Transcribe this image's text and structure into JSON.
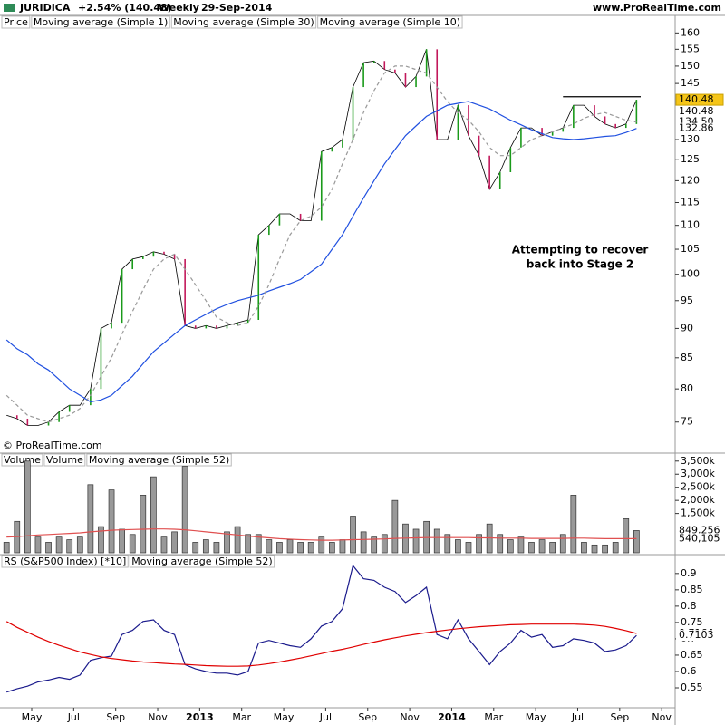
{
  "header": {
    "symbol": "JURIDICA",
    "change": "+2.54% (140.48)",
    "period": "Weekly",
    "date": "29-Sep-2014",
    "site": "www.ProRealTime.com",
    "copyright": "© ProRealTime.com"
  },
  "chart_data": {
    "type": "stock",
    "x": [
      2.8,
      3.3,
      3.8,
      4.3,
      4.8,
      5.3,
      5.8,
      6.3,
      6.8,
      7.3,
      7.8,
      8.3,
      8.8,
      9.3,
      9.8,
      10.3,
      10.8,
      11.3,
      11.8,
      12.3,
      12.8,
      13.3,
      13.8,
      14.3,
      14.8,
      15.3,
      15.8,
      16.3,
      16.8,
      17.3,
      17.8,
      18.3,
      18.8,
      19.3,
      19.8,
      20.3,
      20.8,
      21.3,
      21.8,
      22.3,
      22.8,
      23.3,
      23.8,
      24.3,
      24.8,
      25.3,
      25.8,
      26.3,
      26.8,
      27.3,
      27.8,
      28.3,
      28.8,
      29.3,
      29.8,
      30.3,
      30.8,
      31.3,
      31.8,
      32.3,
      32.8
    ],
    "xlim": [
      2.49,
      34.64
    ],
    "xticks": [
      {
        "value": 4,
        "label": "May"
      },
      {
        "value": 6,
        "label": "Jul"
      },
      {
        "value": 8,
        "label": "Sep"
      },
      {
        "value": 10,
        "label": "Nov"
      },
      {
        "value": 12,
        "label": "2013"
      },
      {
        "value": 14,
        "label": "Mar"
      },
      {
        "value": 16,
        "label": "May"
      },
      {
        "value": 18,
        "label": "Jul"
      },
      {
        "value": 20,
        "label": "Sep"
      },
      {
        "value": 22,
        "label": "Nov"
      },
      {
        "value": 24,
        "label": "2014"
      },
      {
        "value": 26,
        "label": "Mar"
      },
      {
        "value": 28,
        "label": "May"
      },
      {
        "value": 30,
        "label": "Jul"
      },
      {
        "value": 32,
        "label": "Sep"
      },
      {
        "value": 34,
        "label": "Nov"
      }
    ],
    "panels": [
      {
        "label": "Price",
        "log": true,
        "ylim": [
          70.6,
          161.8
        ],
        "yticks": [
          75,
          80,
          85,
          90,
          95,
          100,
          105,
          110,
          115,
          120,
          125,
          130,
          145,
          150,
          155,
          160
        ],
        "series": [
          {
            "name": "Moving average (Simple 1)",
            "style": "close-bars",
            "color": "#000080",
            "values": [
              76,
              75.5,
              74.5,
              74.5,
              75,
              76.5,
              77.5,
              77.5,
              80,
              90,
              91,
              101,
              103,
              103.5,
              104.5,
              104,
              103,
              90.5,
              90,
              90.5,
              90,
              90.5,
              91,
              91.5,
              108,
              110,
              112.5,
              112.5,
              111,
              111,
              127,
              128,
              130,
              144,
              151,
              151.5,
              149,
              148,
              144,
              147,
              155,
              130,
              130,
              139,
              131,
              126,
              118,
              122,
              128,
              133,
              133,
              131,
              132,
              133,
              139,
              139,
              136,
              134,
              133,
              134,
              140.48
            ]
          },
          {
            "name": "Moving average (Simple 30)",
            "style": "line",
            "color": "#2050e0",
            "values": [
              88,
              86.5,
              85.5,
              84,
              83,
              81.5,
              80,
              79,
              78,
              78.3,
              79,
              80.5,
              82,
              84,
              86,
              87.5,
              89,
              90.5,
              91.5,
              92.5,
              93.5,
              94.3,
              95,
              95.5,
              96,
              96.8,
              97.5,
              98.2,
              99,
              100.5,
              102,
              105,
              108,
              112,
              116,
              120,
              124,
              127.5,
              131,
              133.5,
              136,
              137.5,
              139,
              139.5,
              140,
              139,
              138,
              136.5,
              135,
              133.8,
              132.5,
              131.5,
              130.5,
              130.2,
              130,
              130.2,
              130.5,
              130.8,
              131,
              131.8,
              132.86
            ]
          },
          {
            "name": "Moving average (Simple 10)",
            "style": "dashed",
            "color": "#999999",
            "values": [
              79,
              77.5,
              76,
              75.5,
              75,
              75.5,
              76,
              77,
              79,
              82,
              85,
              89,
              93,
              97,
              101,
              103,
              104,
              101,
              98,
              95,
              92,
              91,
              90.5,
              91,
              94,
              98,
              103,
              108,
              111,
              112,
              114,
              118,
              124,
              130,
              137,
              143,
              148,
              150,
              150,
              149,
              148,
              144,
              140,
              137,
              135,
              132,
              128,
              126,
              126,
              128,
              130,
              131,
              132,
              133,
              134,
              135.5,
              136.5,
              137,
              136,
              135,
              134.5
            ]
          }
        ],
        "markers": [
          {
            "value": 140.48,
            "label": "140.48",
            "color": "#000000",
            "fill": "#f5c518"
          },
          {
            "value": 140.48,
            "label": "140.48",
            "color": "#000080",
            "fill": "#ffffff"
          },
          {
            "value": 134.5,
            "label": "134.50",
            "color": "#888888",
            "fill": "#ffffff"
          },
          {
            "value": 132.86,
            "label": "132.86",
            "color": "#2050e0",
            "fill": "#ffffff"
          }
        ],
        "lines": [
          {
            "value": 141.3,
            "x": [
              29.3,
              33.0
            ],
            "color": "#000000"
          }
        ],
        "annotation": [
          "Attempting to recover",
          "back into Stage 2"
        ]
      },
      {
        "label": "Volume",
        "log": false,
        "ylim": [
          0,
          3700000
        ],
        "yticks": [
          {
            "value": 1500000,
            "label": "1,500k"
          },
          {
            "value": 2000000,
            "label": "2,000k"
          },
          {
            "value": 2500000,
            "label": "2,500k"
          },
          {
            "value": 3000000,
            "label": "3,000k"
          },
          {
            "value": 3500000,
            "label": "3,500k"
          }
        ],
        "series": [
          {
            "name": "Volume",
            "style": "columns",
            "color": "#999999",
            "values": [
              400000,
              1200000,
              3500000,
              600000,
              400000,
              600000,
              500000,
              600000,
              2600000,
              1000000,
              2400000,
              900000,
              700000,
              2200000,
              2900000,
              600000,
              800000,
              3300000,
              400000,
              500000,
              400000,
              800000,
              1000000,
              700000,
              700000,
              500000,
              400000,
              500000,
              400000,
              400000,
              600000,
              400000,
              500000,
              1400000,
              800000,
              600000,
              700000,
              2000000,
              1100000,
              900000,
              1200000,
              900000,
              700000,
              500000,
              400000,
              700000,
              1100000,
              700000,
              500000,
              600000,
              400000,
              500000,
              400000,
              700000,
              2200000,
              400000,
              300000,
              300000,
              400000,
              1300000,
              849256
            ]
          },
          {
            "name": "Moving average (Simple 52)",
            "style": "line",
            "color": "#e05050",
            "values": [
              600000,
              620000,
              650000,
              680000,
              700000,
              720000,
              740000,
              760000,
              800000,
              830000,
              860000,
              880000,
              890000,
              900000,
              910000,
              910000,
              900000,
              880000,
              840000,
              800000,
              760000,
              720000,
              680000,
              640000,
              600000,
              570000,
              540000,
              520000,
              500000,
              490000,
              480000,
              480000,
              490000,
              500000,
              510000,
              520000,
              530000,
              550000,
              560000,
              570000,
              580000,
              580000,
              580000,
              580000,
              580000,
              570000,
              570000,
              560000,
              560000,
              560000,
              550000,
              550000,
              550000,
              550000,
              560000,
              560000,
              550000,
              540000,
              540000,
              540000,
              540105
            ]
          }
        ],
        "markers": [
          {
            "value": 849256,
            "label": "849,256",
            "color": "#888888",
            "fill": "#ffffff"
          },
          {
            "value": 540105,
            "label": "540,105",
            "color": "#e05050",
            "fill": "#ffffff"
          }
        ]
      },
      {
        "label": "RS (S&P500 Index) [*10]",
        "log": false,
        "ylim": [
          0.489,
          0.955
        ],
        "yticks": [
          0.55,
          0.6,
          0.65,
          0.7,
          0.75,
          0.8,
          0.85,
          0.9
        ],
        "series": [
          {
            "name": null,
            "style": "line",
            "color": "#1a1a8c",
            "values": [
              0.537,
              0.547,
              0.555,
              0.568,
              0.574,
              0.582,
              0.576,
              0.589,
              0.634,
              0.642,
              0.647,
              0.713,
              0.726,
              0.753,
              0.758,
              0.726,
              0.713,
              0.621,
              0.608,
              0.6,
              0.595,
              0.595,
              0.589,
              0.6,
              0.687,
              0.695,
              0.687,
              0.679,
              0.674,
              0.7,
              0.739,
              0.753,
              0.792,
              0.924,
              0.884,
              0.879,
              0.858,
              0.845,
              0.811,
              0.832,
              0.858,
              0.713,
              0.7,
              0.758,
              0.7,
              0.661,
              0.621,
              0.661,
              0.687,
              0.726,
              0.705,
              0.713,
              0.674,
              0.679,
              0.7,
              0.695,
              0.687,
              0.661,
              0.666,
              0.679,
              0.7103
            ]
          },
          {
            "name": "Moving average (Simple 52)",
            "style": "line",
            "color": "#e00000",
            "values": [
              0.753,
              0.735,
              0.72,
              0.705,
              0.692,
              0.68,
              0.67,
              0.66,
              0.652,
              0.645,
              0.64,
              0.636,
              0.632,
              0.629,
              0.627,
              0.625,
              0.623,
              0.622,
              0.62,
              0.618,
              0.617,
              0.616,
              0.616,
              0.617,
              0.62,
              0.624,
              0.629,
              0.635,
              0.641,
              0.648,
              0.655,
              0.662,
              0.668,
              0.675,
              0.683,
              0.69,
              0.697,
              0.703,
              0.709,
              0.714,
              0.719,
              0.723,
              0.727,
              0.731,
              0.734,
              0.737,
              0.739,
              0.741,
              0.743,
              0.744,
              0.745,
              0.745,
              0.745,
              0.745,
              0.745,
              0.744,
              0.742,
              0.738,
              0.732,
              0.725,
              0.7164
            ]
          }
        ],
        "markers": [
          {
            "value": 0.7164,
            "label": "0.7164",
            "color": "#e00000",
            "fill": "#ffffff"
          },
          {
            "value": 0.7103,
            "label": "0.7103",
            "color": "#1a1a8c",
            "fill": "#ffffff"
          }
        ]
      }
    ]
  }
}
